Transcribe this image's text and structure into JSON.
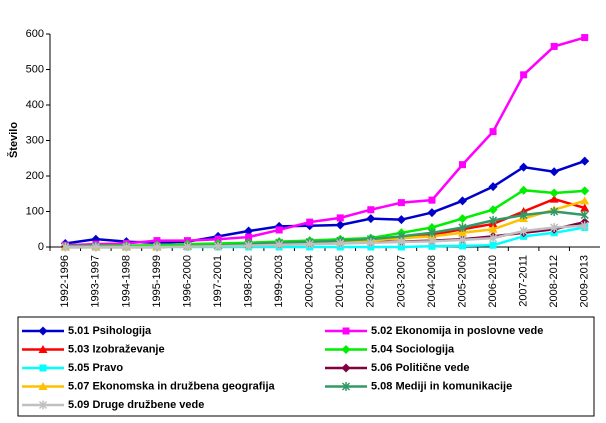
{
  "chart_data": {
    "type": "line",
    "y_label": "Število",
    "categories": [
      "1992-1996",
      "1993-1997",
      "1994-1998",
      "1995-1999",
      "1996-2000",
      "1997-2001",
      "1998-2002",
      "1999-2003",
      "2000-2004",
      "2001-2005",
      "2002-2006",
      "2003-2007",
      "2004-2008",
      "2005-2009",
      "2006-2010",
      "2007-2011",
      "2008-2012",
      "2009-2013"
    ],
    "ylim": [
      0,
      600
    ],
    "yticks": [
      0,
      100,
      200,
      300,
      400,
      500,
      600
    ],
    "series": [
      {
        "name": "5.01 Psihologija",
        "color": "#0000cc",
        "marker": "diamond",
        "values": [
          10,
          22,
          15,
          12,
          15,
          30,
          45,
          58,
          60,
          62,
          80,
          77,
          97,
          130,
          170,
          225,
          212,
          242
        ]
      },
      {
        "name": "5.02 Ekonomija in poslovne vede",
        "color": "#ff00ff",
        "marker": "square",
        "values": [
          5,
          8,
          10,
          18,
          18,
          22,
          28,
          48,
          70,
          82,
          105,
          125,
          132,
          232,
          325,
          485,
          565,
          590
        ]
      },
      {
        "name": "5.03 Izobraževanje",
        "color": "#ff0000",
        "marker": "triangle",
        "values": [
          0,
          0,
          0,
          0,
          2,
          5,
          8,
          12,
          15,
          18,
          20,
          25,
          35,
          50,
          65,
          100,
          135,
          110
        ]
      },
      {
        "name": "5.04 Sociologija",
        "color": "#00ee00",
        "marker": "diamond",
        "values": [
          2,
          3,
          4,
          5,
          8,
          10,
          12,
          15,
          18,
          22,
          25,
          40,
          55,
          80,
          105,
          160,
          152,
          158
        ]
      },
      {
        "name": "5.05 Pravo",
        "color": "#00ffff",
        "marker": "square",
        "values": [
          0,
          0,
          0,
          0,
          0,
          0,
          0,
          0,
          0,
          0,
          0,
          0,
          2,
          3,
          5,
          30,
          40,
          55
        ]
      },
      {
        "name": "5.06 Politične vede",
        "color": "#800040",
        "marker": "diamond",
        "values": [
          0,
          0,
          0,
          0,
          2,
          4,
          6,
          8,
          10,
          12,
          14,
          15,
          18,
          22,
          30,
          40,
          50,
          70
        ]
      },
      {
        "name": "5.07 Ekonomska in družbena geografija",
        "color": "#ffc000",
        "marker": "triangle",
        "values": [
          0,
          0,
          0,
          0,
          2,
          4,
          6,
          10,
          12,
          15,
          18,
          25,
          30,
          40,
          50,
          80,
          105,
          130
        ]
      },
      {
        "name": "5.08 Mediji in komunikacije",
        "color": "#339966",
        "marker": "star",
        "values": [
          0,
          0,
          0,
          0,
          2,
          4,
          8,
          12,
          14,
          18,
          22,
          30,
          40,
          55,
          75,
          90,
          100,
          90
        ]
      },
      {
        "name": "5.09 Druge družbene vede",
        "color": "#c0c0c0",
        "marker": "star",
        "values": [
          0,
          0,
          0,
          0,
          1,
          2,
          4,
          6,
          8,
          10,
          12,
          14,
          16,
          20,
          25,
          45,
          55,
          60
        ]
      }
    ]
  }
}
